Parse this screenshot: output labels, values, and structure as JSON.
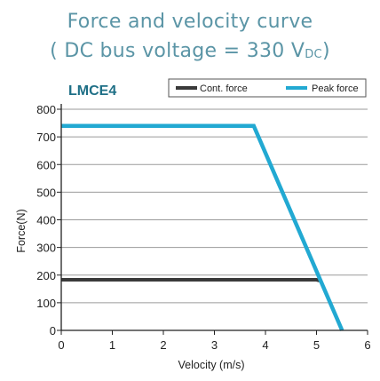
{
  "header": {
    "title_line1": "Force and velocity curve",
    "title_line2_prefix": "( DC bus voltage = 330 V",
    "title_line2_sub": "DC",
    "title_line2_suffix": ")"
  },
  "colors": {
    "title": "#5b95a6",
    "model": "#1e6f86",
    "cont_force": "#3a3a3a",
    "peak_force": "#22a9d2",
    "grid": "#9a9a9a",
    "axis": "#222222"
  },
  "chart_data": {
    "type": "line",
    "model_label": "LMCE4",
    "xlabel": "Velocity (m/s)",
    "ylabel": "Force(N)",
    "xlim": [
      0,
      6
    ],
    "ylim": [
      0,
      800
    ],
    "xticks": [
      0,
      1,
      2,
      3,
      4,
      5,
      6
    ],
    "yticks": [
      0,
      100,
      200,
      300,
      400,
      500,
      600,
      700,
      800
    ],
    "grid": "horizontal",
    "legend_position": "top-right",
    "series": [
      {
        "name": "Cont. force",
        "color": "#3a3a3a",
        "points": [
          [
            0,
            183
          ],
          [
            5.0,
            183
          ],
          [
            5.07,
            180
          ]
        ]
      },
      {
        "name": "Peak force",
        "color": "#22a9d2",
        "points": [
          [
            0,
            740
          ],
          [
            3.77,
            740
          ],
          [
            5.5,
            0
          ]
        ]
      }
    ]
  }
}
